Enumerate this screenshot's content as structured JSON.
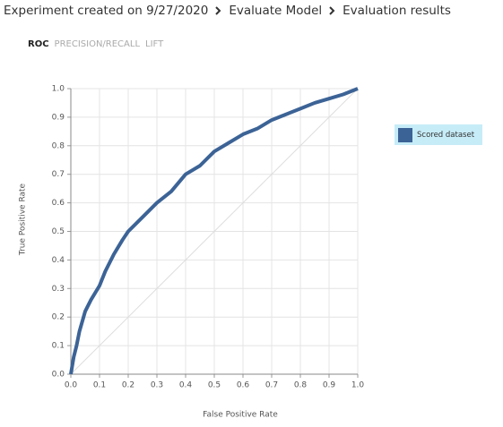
{
  "breadcrumb": [
    "Experiment created on 9/27/2020",
    "Evaluate Model",
    "Evaluation results"
  ],
  "tabs": [
    "ROC",
    "PRECISION/RECALL",
    "LIFT"
  ],
  "chart_data": {
    "type": "line",
    "x_label": "False Positive Rate",
    "y_label": "True Positive Rate",
    "x": [
      0,
      0.01,
      0.02,
      0.03,
      0.05,
      0.07,
      0.1,
      0.12,
      0.15,
      0.18,
      0.2,
      0.25,
      0.3,
      0.35,
      0.4,
      0.45,
      0.5,
      0.55,
      0.6,
      0.65,
      0.7,
      0.75,
      0.8,
      0.85,
      0.9,
      0.95,
      1
    ],
    "series": [
      {
        "name": "Scored dataset",
        "color": "#3c6396",
        "values": [
          0,
          0.06,
          0.1,
          0.15,
          0.22,
          0.26,
          0.31,
          0.36,
          0.42,
          0.47,
          0.5,
          0.55,
          0.6,
          0.64,
          0.7,
          0.73,
          0.78,
          0.81,
          0.84,
          0.86,
          0.89,
          0.91,
          0.93,
          0.95,
          0.965,
          0.98,
          1
        ]
      }
    ],
    "xlim": [
      0,
      1
    ],
    "ylim": [
      0,
      1
    ],
    "xticks": [
      {
        "value": 0,
        "label": "0.0"
      },
      0.1,
      0.2,
      0.3,
      0.4,
      0.5,
      0.6,
      0.7,
      0.8,
      0.9,
      {
        "value": 1,
        "label": "1.0"
      }
    ],
    "yticks": [
      {
        "value": 0,
        "label": "0.0"
      },
      0.1,
      0.2,
      0.3,
      0.4,
      0.5,
      0.6,
      0.7,
      0.8,
      0.9,
      {
        "value": 1,
        "label": "1.0"
      }
    ],
    "grid": true,
    "legend": "right"
  }
}
